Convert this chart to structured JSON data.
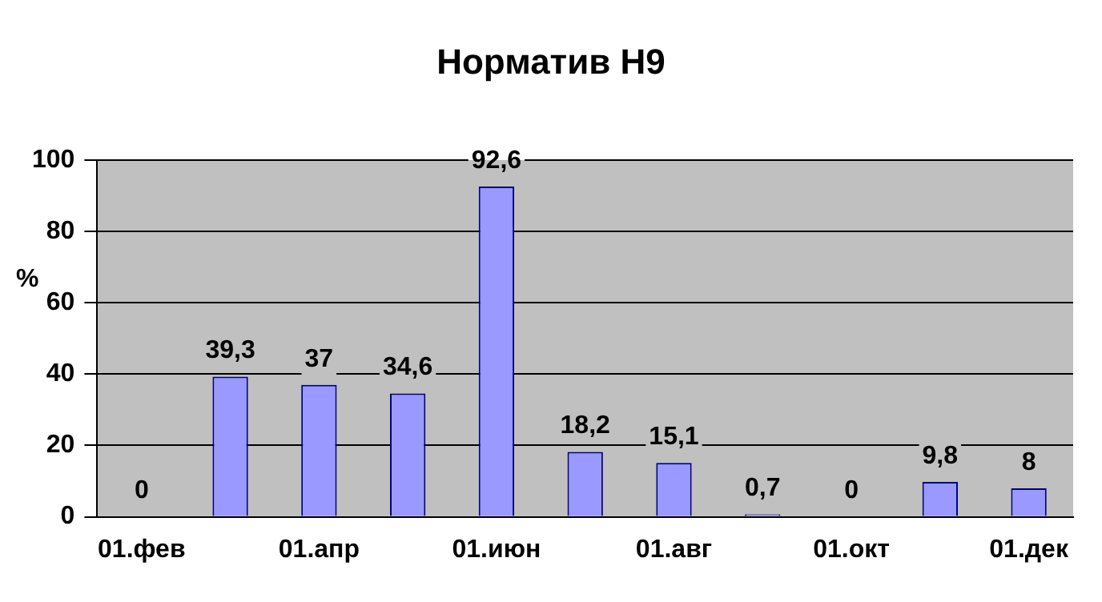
{
  "chart_data": {
    "type": "bar",
    "title": "Норматив Н9",
    "ylabel": "%",
    "categories": [
      "01.фев",
      null,
      "01.апр",
      null,
      "01.июн",
      null,
      "01.авг",
      null,
      "01.окт",
      null,
      "01.дек"
    ],
    "values": [
      0,
      39.3,
      37,
      34.6,
      92.6,
      18.2,
      15.1,
      0.7,
      0,
      9.8,
      8
    ],
    "value_labels": [
      "0",
      "39,3",
      "37",
      "34,6",
      "92,6",
      "18,2",
      "15,1",
      "0,7",
      "0",
      "9,8",
      "8"
    ],
    "color": "#9999ff",
    "ylim": [
      0,
      100
    ],
    "yticks": [
      0,
      20,
      40,
      60,
      80,
      100
    ],
    "grid": "y",
    "legend": false
  }
}
